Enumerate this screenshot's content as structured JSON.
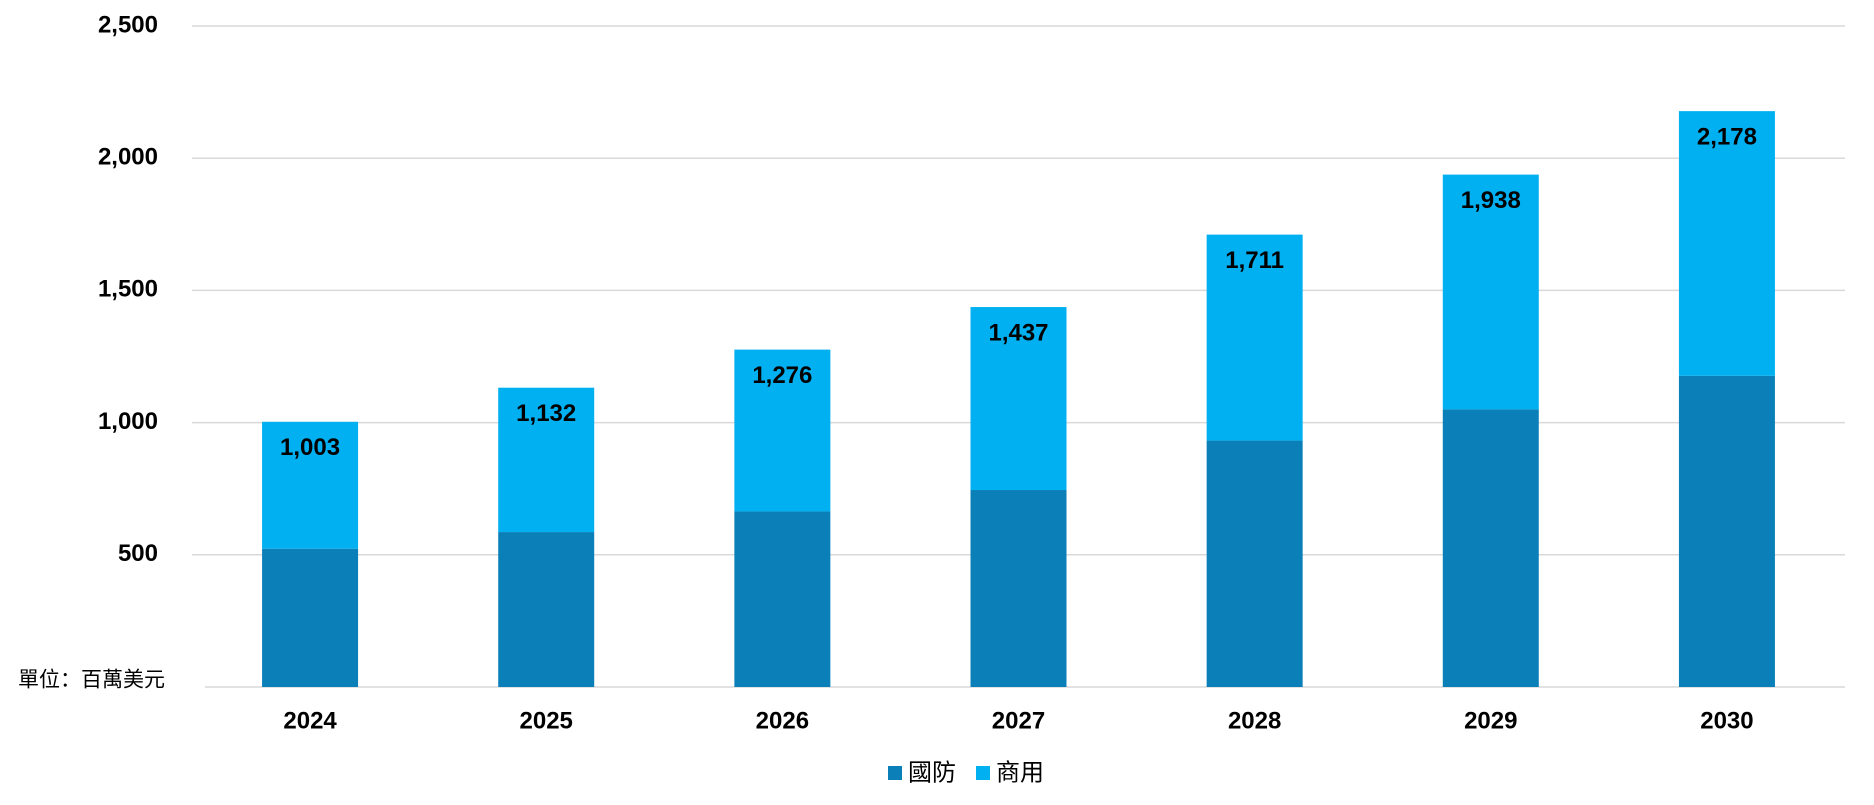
{
  "chart_data": {
    "type": "stacked_bar",
    "unit_note": "單位：百萬美元",
    "categories": [
      "2024",
      "2025",
      "2026",
      "2027",
      "2028",
      "2029",
      "2030"
    ],
    "series": [
      {
        "name": "國防",
        "color": "#0a7fb8",
        "values": [
          523,
          586,
          664,
          745,
          932,
          1050,
          1177
        ]
      },
      {
        "name": "商用",
        "color": "#00b0f0",
        "values": [
          480,
          546,
          612,
          692,
          779,
          888,
          1001
        ]
      }
    ],
    "totals": [
      1003,
      1132,
      1276,
      1437,
      1711,
      1938,
      2178
    ],
    "total_labels": [
      "1,003",
      "1,132",
      "1,276",
      "1,437",
      "1,711",
      "1,938",
      "2,178"
    ],
    "ylim": [
      0,
      2500
    ],
    "yticks": [
      500,
      {
        "value": 1000,
        "label": "1,000"
      },
      {
        "value": 1500,
        "label": "1,500"
      },
      {
        "value": 2000,
        "label": "2,000"
      },
      {
        "value": 2500,
        "label": "2,500"
      }
    ],
    "grid": true,
    "legend": "bottom"
  }
}
